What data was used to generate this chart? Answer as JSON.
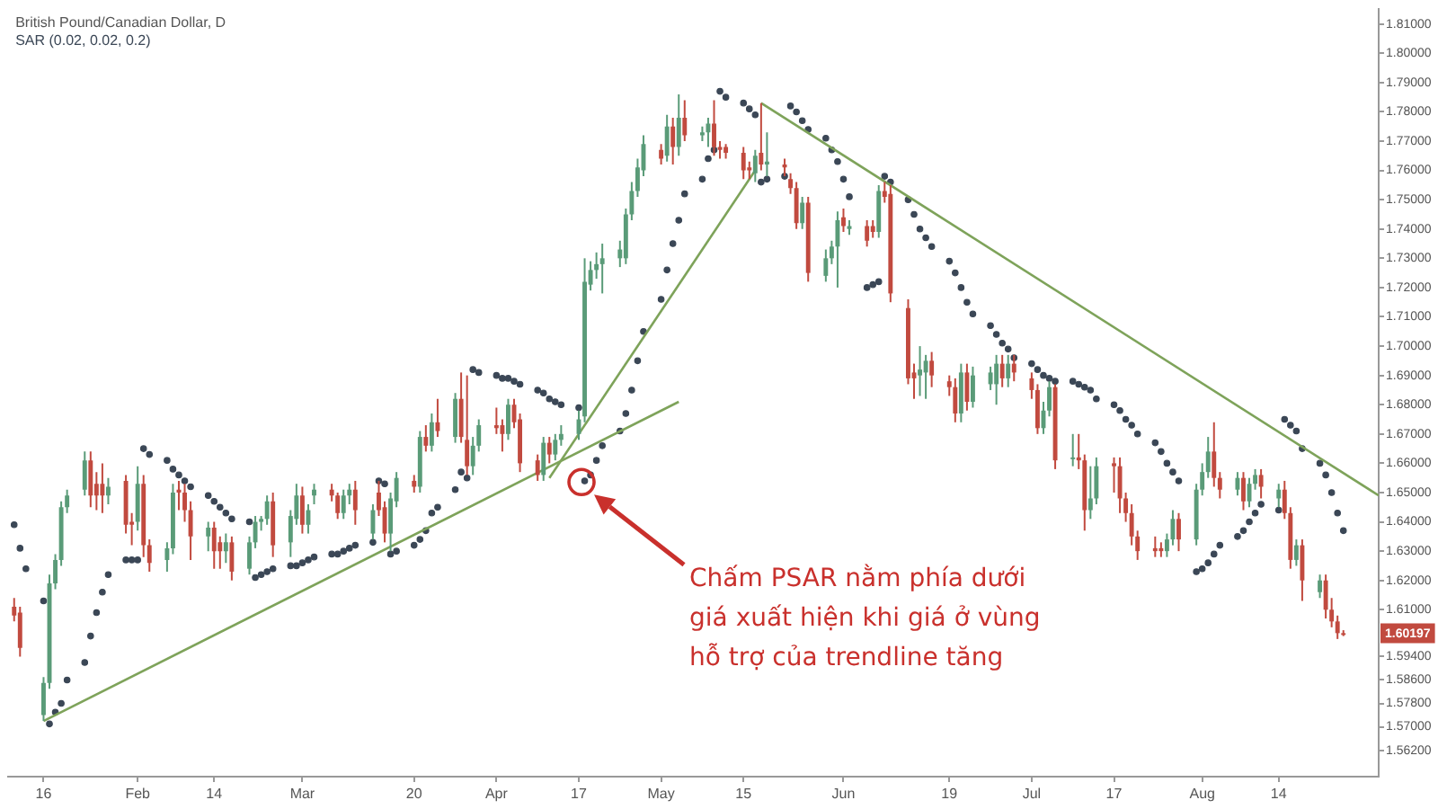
{
  "chart_data": {
    "type": "candlestick",
    "title": "British Pound/Canadian Dollar, D",
    "x": [
      "--01-11",
      "--01-12",
      "--01-13",
      "--01-16",
      "--01-17",
      "--01-18",
      "--01-19",
      "--01-20",
      "--01-23",
      "--01-24",
      "--01-25",
      "--01-26",
      "--01-27",
      "--01-30",
      "--01-31",
      "--02-01",
      "--02-02",
      "--02-03",
      "--02-06",
      "--02-07",
      "--02-08",
      "--02-09",
      "--02-10",
      "--02-13",
      "--02-14",
      "--02-15",
      "--02-16",
      "--02-17",
      "--02-20",
      "--02-21",
      "--02-22",
      "--02-23",
      "--02-24",
      "--02-27",
      "--02-28",
      "--03-01",
      "--03-02",
      "--03-03",
      "--03-06",
      "--03-07",
      "--03-08",
      "--03-09",
      "--03-10",
      "--03-13",
      "--03-14",
      "--03-15",
      "--03-16",
      "--03-17",
      "--03-20",
      "--03-21",
      "--03-22",
      "--03-23",
      "--03-24",
      "--03-27",
      "--03-28",
      "--03-29",
      "--03-30",
      "--03-31",
      "--04-03",
      "--04-04",
      "--04-05",
      "--04-06",
      "--04-07",
      "--04-10",
      "--04-11",
      "--04-12",
      "--04-13",
      "--04-14",
      "--04-17",
      "--04-18",
      "--04-19",
      "--04-20",
      "--04-21",
      "--04-24",
      "--04-25",
      "--04-26",
      "--04-27",
      "--04-28",
      "--05-01",
      "--05-02",
      "--05-03",
      "--05-04",
      "--05-05",
      "--05-08",
      "--05-09",
      "--05-10",
      "--05-11",
      "--05-12",
      "--05-15",
      "--05-16",
      "--05-17",
      "--05-18",
      "--05-19",
      "--05-22",
      "--05-23",
      "--05-24",
      "--05-25",
      "--05-26",
      "--05-29",
      "--05-30",
      "--05-31",
      "--06-01",
      "--06-02",
      "--06-05",
      "--06-06",
      "--06-07",
      "--06-08",
      "--06-09",
      "--06-12",
      "--06-13",
      "--06-14",
      "--06-15",
      "--06-16",
      "--06-19",
      "--06-20",
      "--06-21",
      "--06-22",
      "--06-23",
      "--06-26",
      "--06-27",
      "--06-28",
      "--06-29",
      "--06-30",
      "--07-03",
      "--07-04",
      "--07-05",
      "--07-06",
      "--07-07",
      "--07-10",
      "--07-11",
      "--07-12",
      "--07-13",
      "--07-14",
      "--07-17",
      "--07-18",
      "--07-19",
      "--07-20",
      "--07-21",
      "--07-24",
      "--07-25",
      "--07-26",
      "--07-27",
      "--07-28",
      "--07-31",
      "--08-01",
      "--08-02",
      "--08-03",
      "--08-04",
      "--08-07",
      "--08-08",
      "--08-09",
      "--08-10",
      "--08-11",
      "--08-14",
      "--08-15",
      "--08-16",
      "--08-17",
      "--08-18",
      "--08-21",
      "--08-22",
      "--08-23",
      "--08-24",
      "--08-25"
    ],
    "xlim": [
      "--01-10",
      "--08-31"
    ],
    "xticks": [
      {
        "value": "--01-16",
        "label": "16"
      },
      {
        "value": "--02-01",
        "label": "Feb"
      },
      {
        "value": "--02-14",
        "label": "14"
      },
      {
        "value": "--03-01",
        "label": "Mar"
      },
      {
        "value": "--03-20",
        "label": "20"
      },
      {
        "value": "--04-03",
        "label": "Apr"
      },
      {
        "value": "--04-17",
        "label": "17"
      },
      {
        "value": "--05-01",
        "label": "May"
      },
      {
        "value": "--05-15",
        "label": "15"
      },
      {
        "value": "--06-01",
        "label": "Jun"
      },
      {
        "value": "--06-19",
        "label": "19"
      },
      {
        "value": "--07-03",
        "label": "Jul"
      },
      {
        "value": "--07-17",
        "label": "17"
      },
      {
        "value": "--08-01",
        "label": "Aug"
      },
      {
        "value": "--08-14",
        "label": "14"
      }
    ],
    "ylim": [
      1.553,
      1.815
    ],
    "yticks": [
      {
        "value": 1.562,
        "label": "1.56200"
      },
      {
        "value": 1.57,
        "label": "1.57000"
      },
      {
        "value": 1.578,
        "label": "1.57800"
      },
      {
        "value": 1.586,
        "label": "1.58600"
      },
      {
        "value": 1.594,
        "label": "1.59400"
      },
      {
        "value": 1.61,
        "label": "1.61000"
      },
      {
        "value": 1.62,
        "label": "1.62000"
      },
      {
        "value": 1.63,
        "label": "1.63000"
      },
      {
        "value": 1.64,
        "label": "1.64000"
      },
      {
        "value": 1.65,
        "label": "1.65000"
      },
      {
        "value": 1.66,
        "label": "1.66000"
      },
      {
        "value": 1.67,
        "label": "1.67000"
      },
      {
        "value": 1.68,
        "label": "1.68000"
      },
      {
        "value": 1.69,
        "label": "1.69000"
      },
      {
        "value": 1.7,
        "label": "1.70000"
      },
      {
        "value": 1.71,
        "label": "1.71000"
      },
      {
        "value": 1.72,
        "label": "1.72000"
      },
      {
        "value": 1.73,
        "label": "1.73000"
      },
      {
        "value": 1.74,
        "label": "1.74000"
      },
      {
        "value": 1.75,
        "label": "1.75000"
      },
      {
        "value": 1.76,
        "label": "1.76000"
      },
      {
        "value": 1.77,
        "label": "1.77000"
      },
      {
        "value": 1.78,
        "label": "1.78000"
      },
      {
        "value": 1.79,
        "label": "1.79000"
      },
      {
        "value": 1.8,
        "label": "1.80000"
      },
      {
        "value": 1.81,
        "label": "1.81000"
      }
    ],
    "legend": "top left",
    "series": [
      {
        "type": "line",
        "x": [
          "--01-16",
          "--05-04"
        ],
        "values": [
          1.572,
          1.681
        ],
        "color": "#7ea35a",
        "marker": "none"
      },
      {
        "type": "line",
        "x": [
          "--04-12",
          "--05-17"
        ],
        "values": [
          1.655,
          1.76
        ],
        "color": "#7ea35a",
        "marker": "none"
      },
      {
        "type": "line",
        "x": [
          "--05-18",
          "--08-31"
        ],
        "values": [
          1.783,
          1.649
        ],
        "color": "#7ea35a",
        "marker": "none"
      },
      {
        "type": "scatter",
        "name": "SAR (0.02, 0.02, 0.2)",
        "color": "#3b4756",
        "marker": "circle",
        "values": [
          1.639,
          1.631,
          1.624,
          1.613,
          1.571,
          1.575,
          1.578,
          1.586,
          1.592,
          1.601,
          1.609,
          1.616,
          1.622,
          1.627,
          1.627,
          1.627,
          1.665,
          1.663,
          1.661,
          1.658,
          1.656,
          1.654,
          1.652,
          1.649,
          1.647,
          1.645,
          1.643,
          1.641,
          1.64,
          1.621,
          1.622,
          1.623,
          1.624,
          1.625,
          1.625,
          1.626,
          1.627,
          1.628,
          1.629,
          1.629,
          1.63,
          1.631,
          1.632,
          1.633,
          1.654,
          1.653,
          1.629,
          1.63,
          1.632,
          1.634,
          1.637,
          1.643,
          1.645,
          1.651,
          1.657,
          1.655,
          1.692,
          1.691,
          1.69,
          1.689,
          1.689,
          1.688,
          1.687,
          1.685,
          1.684,
          1.682,
          1.681,
          1.68,
          1.679,
          1.654,
          1.656,
          1.661,
          1.666,
          1.671,
          1.677,
          1.685,
          1.695,
          1.705,
          1.716,
          1.726,
          1.735,
          1.743,
          1.752,
          1.757,
          1.764,
          1.767,
          1.787,
          1.785,
          1.783,
          1.781,
          1.779,
          1.756,
          1.757,
          1.758,
          1.782,
          1.78,
          1.777,
          1.774,
          1.771,
          1.767,
          1.763,
          1.757,
          1.751,
          1.72,
          1.721,
          1.722,
          1.758,
          1.756,
          1.75,
          1.745,
          1.74,
          1.737,
          1.734,
          1.729,
          1.725,
          1.72,
          1.715,
          1.711,
          1.707,
          1.704,
          1.701,
          1.699,
          1.696,
          1.694,
          1.692,
          1.69,
          1.689,
          1.688,
          1.688,
          1.687,
          1.686,
          1.685,
          1.682,
          1.68,
          1.678,
          1.675,
          1.673,
          1.67,
          1.667,
          1.664,
          1.66,
          1.657,
          1.654,
          1.623,
          1.624,
          1.626,
          1.629,
          1.632,
          1.635,
          1.637,
          1.64,
          1.643,
          1.646,
          1.644,
          1.675,
          1.673,
          1.671,
          1.665,
          1.66,
          1.656,
          1.65,
          1.643,
          1.637
        ]
      },
      {
        "type": "candlestick",
        "ohlc": [
          [
            1.611,
            1.614,
            1.606,
            1.608
          ],
          [
            1.609,
            1.611,
            1.594,
            1.597
          ],
          null,
          [
            1.574,
            1.587,
            1.572,
            1.585
          ],
          [
            1.585,
            1.622,
            1.583,
            1.619
          ],
          [
            1.619,
            1.629,
            1.617,
            1.627
          ],
          [
            1.627,
            1.647,
            1.625,
            1.645
          ],
          [
            1.645,
            1.651,
            1.643,
            1.649
          ],
          [
            1.651,
            1.664,
            1.649,
            1.661
          ],
          [
            1.661,
            1.664,
            1.645,
            1.649
          ],
          [
            1.653,
            1.657,
            1.644,
            1.649
          ],
          [
            1.653,
            1.66,
            1.643,
            1.649
          ],
          [
            1.649,
            1.655,
            1.646,
            1.652
          ],
          [
            1.654,
            1.656,
            1.636,
            1.639
          ],
          [
            1.64,
            1.643,
            1.632,
            1.639
          ],
          [
            1.64,
            1.659,
            1.637,
            1.653
          ],
          [
            1.653,
            1.656,
            1.628,
            1.632
          ],
          [
            1.632,
            1.634,
            1.623,
            1.626
          ],
          [
            1.627,
            1.633,
            1.623,
            1.631
          ],
          [
            1.631,
            1.653,
            1.629,
            1.65
          ],
          [
            1.651,
            1.654,
            1.644,
            1.65
          ],
          [
            1.65,
            1.653,
            1.64,
            1.644
          ],
          [
            1.644,
            1.647,
            1.627,
            1.635
          ],
          [
            1.635,
            1.64,
            1.63,
            1.638
          ],
          [
            1.638,
            1.64,
            1.624,
            1.63
          ],
          [
            1.633,
            1.635,
            1.624,
            1.63
          ],
          [
            1.63,
            1.636,
            1.626,
            1.633
          ],
          [
            1.633,
            1.635,
            1.62,
            1.623
          ],
          [
            1.624,
            1.635,
            1.622,
            1.633
          ],
          [
            1.633,
            1.642,
            1.631,
            1.64
          ],
          [
            1.64,
            1.642,
            1.637,
            1.641
          ],
          [
            1.641,
            1.649,
            1.639,
            1.647
          ],
          [
            1.647,
            1.65,
            1.628,
            1.632
          ],
          [
            1.633,
            1.644,
            1.628,
            1.642
          ],
          [
            1.641,
            1.653,
            1.639,
            1.649
          ],
          [
            1.649,
            1.652,
            1.636,
            1.639
          ],
          [
            1.639,
            1.646,
            1.636,
            1.644
          ],
          [
            1.649,
            1.653,
            1.646,
            1.651
          ],
          [
            1.651,
            1.653,
            1.647,
            1.649
          ],
          [
            1.649,
            1.65,
            1.641,
            1.643
          ],
          [
            1.643,
            1.651,
            1.641,
            1.649
          ],
          [
            1.649,
            1.653,
            1.646,
            1.651
          ],
          [
            1.651,
            1.654,
            1.639,
            1.644
          ],
          [
            1.636,
            1.646,
            1.634,
            1.644
          ],
          [
            1.65,
            1.654,
            1.642,
            1.644
          ],
          [
            1.645,
            1.647,
            1.633,
            1.636
          ],
          [
            1.636,
            1.65,
            1.63,
            1.648
          ],
          [
            1.647,
            1.657,
            1.645,
            1.655
          ],
          [
            1.654,
            1.656,
            1.65,
            1.652
          ],
          [
            1.652,
            1.671,
            1.65,
            1.669
          ],
          [
            1.669,
            1.673,
            1.664,
            1.666
          ],
          [
            1.666,
            1.677,
            1.664,
            1.674
          ],
          [
            1.674,
            1.682,
            1.669,
            1.671
          ],
          [
            1.669,
            1.684,
            1.667,
            1.682
          ],
          [
            1.682,
            1.691,
            1.667,
            1.669
          ],
          [
            1.668,
            1.69,
            1.656,
            1.659
          ],
          [
            1.659,
            1.669,
            1.656,
            1.666
          ],
          [
            1.666,
            1.675,
            1.664,
            1.673
          ],
          [
            1.673,
            1.679,
            1.67,
            1.672
          ],
          [
            1.673,
            1.675,
            1.664,
            1.67
          ],
          [
            1.67,
            1.682,
            1.668,
            1.68
          ],
          [
            1.68,
            1.682,
            1.672,
            1.674
          ],
          [
            1.675,
            1.677,
            1.657,
            1.66
          ],
          [
            1.661,
            1.663,
            1.654,
            1.656
          ],
          [
            1.656,
            1.669,
            1.654,
            1.667
          ],
          [
            1.667,
            1.669,
            1.66,
            1.663
          ],
          [
            1.663,
            1.67,
            1.661,
            1.668
          ],
          [
            1.668,
            1.673,
            1.666,
            1.67
          ],
          [
            1.67,
            1.678,
            1.668,
            1.675
          ],
          [
            1.676,
            1.73,
            1.674,
            1.722
          ],
          [
            1.721,
            1.729,
            1.719,
            1.726
          ],
          [
            1.726,
            1.732,
            1.723,
            1.728
          ],
          [
            1.728,
            1.735,
            1.718,
            1.73
          ],
          [
            1.73,
            1.736,
            1.727,
            1.733
          ],
          [
            1.73,
            1.747,
            1.728,
            1.745
          ],
          [
            1.745,
            1.756,
            1.743,
            1.753
          ],
          [
            1.753,
            1.764,
            1.751,
            1.761
          ],
          [
            1.76,
            1.772,
            1.758,
            1.769
          ],
          [
            1.767,
            1.769,
            1.762,
            1.764
          ],
          [
            1.765,
            1.779,
            1.763,
            1.775
          ],
          [
            1.775,
            1.778,
            1.762,
            1.768
          ],
          [
            1.768,
            1.786,
            1.765,
            1.778
          ],
          [
            1.778,
            1.784,
            1.77,
            1.772
          ],
          [
            1.772,
            1.775,
            1.77,
            1.773
          ],
          [
            1.773,
            1.778,
            1.768,
            1.776
          ],
          [
            1.776,
            1.784,
            1.765,
            1.768
          ],
          [
            1.768,
            1.77,
            1.764,
            1.767
          ],
          [
            1.768,
            1.769,
            1.764,
            1.766
          ],
          [
            1.766,
            1.768,
            1.757,
            1.76
          ],
          [
            1.761,
            1.763,
            1.757,
            1.76
          ],
          [
            1.759,
            1.767,
            1.756,
            1.765
          ],
          [
            1.766,
            1.783,
            1.76,
            1.762
          ],
          [
            1.762,
            1.773,
            1.758,
            1.763
          ],
          [
            1.762,
            1.764,
            1.758,
            1.761
          ],
          [
            1.757,
            1.759,
            1.752,
            1.754
          ],
          [
            1.754,
            1.756,
            1.74,
            1.742
          ],
          [
            1.742,
            1.751,
            1.74,
            1.749
          ],
          [
            1.749,
            1.751,
            1.722,
            1.725
          ],
          [
            1.724,
            1.733,
            1.722,
            1.73
          ],
          [
            1.73,
            1.736,
            1.728,
            1.734
          ],
          [
            1.734,
            1.746,
            1.72,
            1.743
          ],
          [
            1.744,
            1.747,
            1.739,
            1.741
          ],
          [
            1.74,
            1.743,
            1.738,
            1.741
          ],
          [
            1.741,
            1.743,
            1.734,
            1.736
          ],
          [
            1.741,
            1.743,
            1.737,
            1.739
          ],
          [
            1.739,
            1.755,
            1.737,
            1.753
          ],
          [
            1.753,
            1.756,
            1.749,
            1.751
          ],
          [
            1.752,
            1.755,
            1.715,
            1.718
          ],
          [
            1.713,
            1.716,
            1.687,
            1.689
          ],
          [
            1.691,
            1.694,
            1.682,
            1.689
          ],
          [
            1.69,
            1.7,
            1.683,
            1.692
          ],
          [
            1.691,
            1.697,
            1.682,
            1.695
          ],
          [
            1.695,
            1.698,
            1.686,
            1.69
          ],
          [
            1.688,
            1.69,
            1.683,
            1.686
          ],
          [
            1.686,
            1.689,
            1.674,
            1.677
          ],
          [
            1.677,
            1.694,
            1.674,
            1.691
          ],
          [
            1.691,
            1.694,
            1.678,
            1.681
          ],
          [
            1.681,
            1.693,
            1.679,
            1.69
          ],
          [
            1.687,
            1.693,
            1.685,
            1.691
          ],
          [
            1.687,
            1.697,
            1.68,
            1.694
          ],
          [
            1.694,
            1.697,
            1.686,
            1.689
          ],
          [
            1.689,
            1.697,
            1.686,
            1.694
          ],
          [
            1.694,
            1.697,
            1.688,
            1.691
          ],
          [
            1.689,
            1.691,
            1.682,
            1.685
          ],
          [
            1.685,
            1.687,
            1.67,
            1.672
          ],
          [
            1.672,
            1.681,
            1.67,
            1.678
          ],
          [
            1.678,
            1.688,
            1.676,
            1.686
          ],
          [
            1.686,
            1.687,
            1.658,
            1.661
          ],
          [
            1.662,
            1.67,
            1.659,
            1.662
          ],
          [
            1.662,
            1.67,
            1.658,
            1.661
          ],
          [
            1.661,
            1.663,
            1.637,
            1.644
          ],
          [
            1.644,
            1.659,
            1.641,
            1.648
          ],
          [
            1.648,
            1.662,
            1.646,
            1.659
          ],
          [
            1.66,
            1.662,
            1.65,
            1.659
          ],
          [
            1.659,
            1.662,
            1.643,
            1.648
          ],
          [
            1.648,
            1.65,
            1.64,
            1.643
          ],
          [
            1.643,
            1.646,
            1.632,
            1.635
          ],
          [
            1.635,
            1.637,
            1.627,
            1.63
          ],
          [
            1.631,
            1.635,
            1.628,
            1.63
          ],
          [
            1.631,
            1.633,
            1.628,
            1.63
          ],
          [
            1.63,
            1.636,
            1.628,
            1.634
          ],
          [
            1.634,
            1.644,
            1.632,
            1.641
          ],
          [
            1.641,
            1.643,
            1.63,
            1.634
          ],
          [
            1.634,
            1.653,
            1.632,
            1.651
          ],
          [
            1.651,
            1.66,
            1.649,
            1.657
          ],
          [
            1.657,
            1.669,
            1.655,
            1.664
          ],
          [
            1.664,
            1.674,
            1.652,
            1.655
          ],
          [
            1.655,
            1.657,
            1.648,
            1.651
          ],
          [
            1.651,
            1.657,
            1.649,
            1.655
          ],
          [
            1.655,
            1.657,
            1.644,
            1.647
          ],
          [
            1.647,
            1.655,
            1.645,
            1.653
          ],
          [
            1.653,
            1.658,
            1.651,
            1.656
          ],
          [
            1.656,
            1.658,
            1.648,
            1.652
          ],
          [
            1.648,
            1.653,
            1.645,
            1.651
          ],
          [
            1.651,
            1.654,
            1.641,
            1.643
          ],
          [
            1.643,
            1.645,
            1.624,
            1.627
          ],
          [
            1.627,
            1.634,
            1.625,
            1.632
          ],
          [
            1.632,
            1.634,
            1.613,
            1.62
          ],
          [
            1.616,
            1.622,
            1.614,
            1.62
          ],
          [
            1.62,
            1.622,
            1.607,
            1.61
          ],
          [
            1.61,
            1.614,
            1.604,
            1.606
          ],
          [
            1.606,
            1.608,
            1.6,
            1.602
          ],
          [
            1.602,
            1.603,
            1.601,
            1.60197
          ]
        ],
        "colors": [
          "#c14a3f",
          "#c14a3f",
          null,
          "#5a9b78",
          "#5a9b78",
          "#5a9b78",
          "#5a9b78",
          "#5a9b78",
          "#5a9b78",
          "#c14a3f",
          "#c14a3f",
          "#c14a3f",
          "#5a9b78",
          "#c14a3f",
          "#c14a3f",
          "#5a9b78",
          "#c14a3f",
          "#c14a3f",
          "#5a9b78",
          "#5a9b78",
          "#c14a3f",
          "#c14a3f",
          "#c14a3f",
          "#5a9b78",
          "#c14a3f",
          "#c14a3f",
          "#5a9b78",
          "#c14a3f",
          "#5a9b78",
          "#5a9b78",
          "#5a9b78",
          "#5a9b78",
          "#c14a3f",
          "#5a9b78",
          "#5a9b78",
          "#c14a3f",
          "#5a9b78",
          "#5a9b78",
          "#c14a3f",
          "#c14a3f",
          "#5a9b78",
          "#5a9b78",
          "#c14a3f",
          "#5a9b78",
          "#c14a3f",
          "#c14a3f",
          "#5a9b78",
          "#5a9b78",
          "#c14a3f",
          "#5a9b78",
          "#c14a3f",
          "#5a9b78",
          "#c14a3f",
          "#5a9b78",
          "#c14a3f",
          "#c14a3f",
          "#5a9b78",
          "#5a9b78",
          "#c14a3f",
          "#c14a3f",
          "#5a9b78",
          "#c14a3f",
          "#c14a3f",
          "#c14a3f",
          "#5a9b78",
          "#c14a3f",
          "#5a9b78",
          "#5a9b78",
          "#5a9b78",
          "#5a9b78",
          "#5a9b78",
          "#5a9b78",
          "#5a9b78",
          "#5a9b78",
          "#5a9b78",
          "#5a9b78",
          "#5a9b78",
          "#5a9b78",
          "#c14a3f",
          "#5a9b78",
          "#c14a3f",
          "#5a9b78",
          "#c14a3f",
          "#5a9b78",
          "#5a9b78",
          "#c14a3f",
          "#c14a3f",
          "#c14a3f",
          "#c14a3f",
          "#c14a3f",
          "#5a9b78",
          "#c14a3f",
          "#5a9b78",
          "#c14a3f",
          "#c14a3f",
          "#c14a3f",
          "#5a9b78",
          "#c14a3f",
          "#5a9b78",
          "#5a9b78",
          "#5a9b78",
          "#c14a3f",
          "#5a9b78",
          "#c14a3f",
          "#c14a3f",
          "#5a9b78",
          "#c14a3f",
          "#c14a3f",
          "#c14a3f",
          "#c14a3f",
          "#5a9b78",
          "#5a9b78",
          "#c14a3f",
          "#c14a3f",
          "#c14a3f",
          "#5a9b78",
          "#c14a3f",
          "#5a9b78",
          "#5a9b78",
          "#5a9b78",
          "#c14a3f",
          "#5a9b78",
          "#c14a3f",
          "#c14a3f",
          "#c14a3f",
          "#5a9b78",
          "#5a9b78",
          "#c14a3f",
          "#5a9b78",
          "#c14a3f",
          "#c14a3f",
          "#5a9b78",
          "#5a9b78",
          "#c14a3f",
          "#c14a3f",
          "#c14a3f",
          "#c14a3f",
          "#c14a3f",
          "#c14a3f",
          "#c14a3f",
          "#5a9b78",
          "#5a9b78",
          "#c14a3f",
          "#5a9b78",
          "#5a9b78",
          "#5a9b78",
          "#c14a3f",
          "#c14a3f",
          "#5a9b78",
          "#c14a3f",
          "#5a9b78",
          "#5a9b78",
          "#c14a3f",
          "#5a9b78",
          "#c14a3f",
          "#c14a3f",
          "#5a9b78",
          "#c14a3f",
          "#5a9b78",
          "#c14a3f",
          "#c14a3f",
          "#c14a3f",
          "#c14a3f"
        ]
      }
    ],
    "annotations": [
      "Chấm PSAR nằm phía dưới\ngiá xuất hiện khi giá ở vùng\nhỗ trợ của trendline tăng",
      "1.60197"
    ]
  }
}
